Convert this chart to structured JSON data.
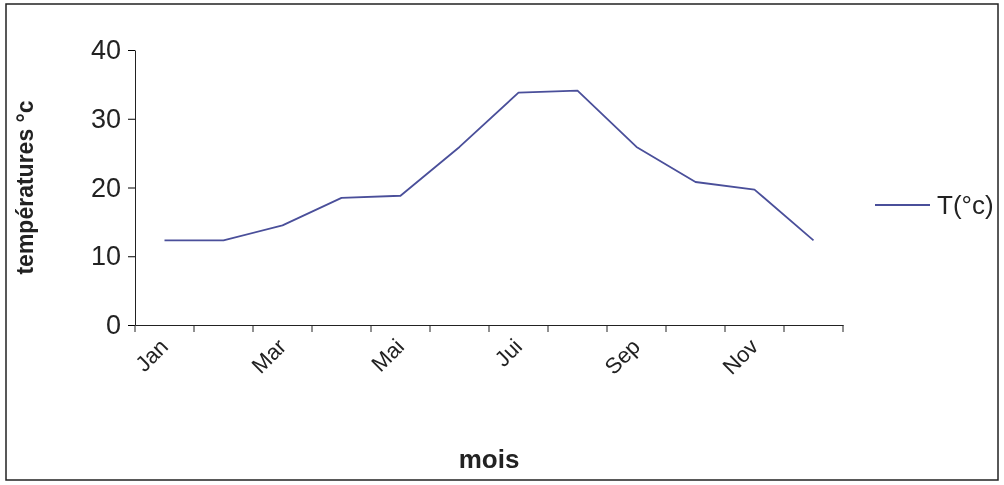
{
  "chart_data": {
    "type": "line",
    "xlabel": "mois",
    "ylabel": "températures °c",
    "categories": [
      "Jan",
      null,
      "Mar",
      null,
      "Mai",
      null,
      "Jui",
      null,
      "Sep",
      null,
      "Nov",
      null
    ],
    "series": [
      {
        "name": "T(°c)",
        "color": "#4a4f9a",
        "values": [
          12.3,
          12.3,
          14.5,
          18.5,
          18.8,
          25.9,
          33.8,
          34.1,
          25.9,
          20.8,
          19.7,
          12.3
        ]
      }
    ],
    "ylim": [
      0,
      40
    ],
    "yticks": [
      0,
      10,
      20,
      30,
      40
    ],
    "grid": false,
    "legend": "right",
    "marker": "none",
    "line_style": "solid"
  }
}
